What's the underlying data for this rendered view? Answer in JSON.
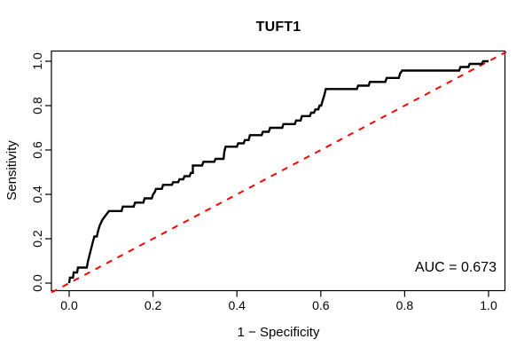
{
  "chart_data": {
    "type": "line",
    "subtype": "roc-step-curve",
    "title": "TUFT1",
    "annotation": "AUC = 0.673",
    "auc_value": 0.673,
    "x_axis": {
      "label": "1 − Specificity",
      "ticks": [
        0.0,
        0.2,
        0.4,
        0.6,
        0.8,
        1.0
      ],
      "tick_labels": [
        "0.0",
        "0.2",
        "0.4",
        "0.6",
        "0.8",
        "1.0"
      ],
      "range": [
        -0.042,
        1.042
      ]
    },
    "y_axis": {
      "label": "Sensitivity",
      "ticks": [
        0.0,
        0.2,
        0.4,
        0.6,
        0.8,
        1.0
      ],
      "tick_labels": [
        "0.0",
        "0.2",
        "0.4",
        "0.6",
        "0.8",
        "1.0"
      ],
      "range": [
        -0.042,
        1.042
      ]
    },
    "grid": false,
    "legend": "none",
    "colors": {
      "curve": "#000000",
      "diagonal": "#ff0000",
      "box": "#000000",
      "background": "#ffffff"
    },
    "series": [
      {
        "name": "roc-curve",
        "color": "#000000",
        "width": 2.4,
        "dash": "",
        "points": [
          [
            0,
            0
          ],
          [
            0.002,
            0.025
          ],
          [
            0.009,
            0.025
          ],
          [
            0.011,
            0.048
          ],
          [
            0.019,
            0.048
          ],
          [
            0.021,
            0.07
          ],
          [
            0.042,
            0.07
          ],
          [
            0.045,
            0.1
          ],
          [
            0.049,
            0.13
          ],
          [
            0.053,
            0.16
          ],
          [
            0.057,
            0.19
          ],
          [
            0.06,
            0.21
          ],
          [
            0.066,
            0.21
          ],
          [
            0.069,
            0.235
          ],
          [
            0.073,
            0.26
          ],
          [
            0.079,
            0.285
          ],
          [
            0.085,
            0.3
          ],
          [
            0.091,
            0.315
          ],
          [
            0.095,
            0.325
          ],
          [
            0.125,
            0.325
          ],
          [
            0.128,
            0.345
          ],
          [
            0.154,
            0.345
          ],
          [
            0.157,
            0.363
          ],
          [
            0.177,
            0.363
          ],
          [
            0.18,
            0.382
          ],
          [
            0.197,
            0.382
          ],
          [
            0.2,
            0.4
          ],
          [
            0.204,
            0.41
          ],
          [
            0.207,
            0.425
          ],
          [
            0.221,
            0.425
          ],
          [
            0.224,
            0.443
          ],
          [
            0.245,
            0.443
          ],
          [
            0.248,
            0.455
          ],
          [
            0.26,
            0.455
          ],
          [
            0.263,
            0.468
          ],
          [
            0.272,
            0.468
          ],
          [
            0.275,
            0.482
          ],
          [
            0.287,
            0.482
          ],
          [
            0.29,
            0.497
          ],
          [
            0.295,
            0.497
          ],
          [
            0.295,
            0.53
          ],
          [
            0.317,
            0.53
          ],
          [
            0.32,
            0.547
          ],
          [
            0.346,
            0.547
          ],
          [
            0.349,
            0.56
          ],
          [
            0.368,
            0.56
          ],
          [
            0.37,
            0.592
          ],
          [
            0.373,
            0.615
          ],
          [
            0.4,
            0.615
          ],
          [
            0.403,
            0.63
          ],
          [
            0.416,
            0.63
          ],
          [
            0.419,
            0.645
          ],
          [
            0.428,
            0.645
          ],
          [
            0.431,
            0.667
          ],
          [
            0.459,
            0.667
          ],
          [
            0.462,
            0.682
          ],
          [
            0.476,
            0.682
          ],
          [
            0.479,
            0.7
          ],
          [
            0.508,
            0.7
          ],
          [
            0.511,
            0.717
          ],
          [
            0.538,
            0.717
          ],
          [
            0.541,
            0.733
          ],
          [
            0.552,
            0.733
          ],
          [
            0.555,
            0.753
          ],
          [
            0.574,
            0.753
          ],
          [
            0.577,
            0.768
          ],
          [
            0.584,
            0.768
          ],
          [
            0.587,
            0.783
          ],
          [
            0.594,
            0.783
          ],
          [
            0.597,
            0.8
          ],
          [
            0.601,
            0.8
          ],
          [
            0.604,
            0.82
          ],
          [
            0.608,
            0.845
          ],
          [
            0.612,
            0.875
          ],
          [
            0.686,
            0.875
          ],
          [
            0.689,
            0.89
          ],
          [
            0.714,
            0.89
          ],
          [
            0.717,
            0.907
          ],
          [
            0.754,
            0.907
          ],
          [
            0.757,
            0.925
          ],
          [
            0.786,
            0.925
          ],
          [
            0.789,
            0.945
          ],
          [
            0.794,
            0.958
          ],
          [
            0.93,
            0.958
          ],
          [
            0.933,
            0.974
          ],
          [
            0.952,
            0.974
          ],
          [
            0.955,
            0.988
          ],
          [
            0.984,
            0.988
          ],
          [
            0.987,
            1
          ],
          [
            1,
            1
          ]
        ]
      },
      {
        "name": "chance-diagonal",
        "color": "#ff0000",
        "width": 2,
        "dash": "7,7",
        "points": [
          [
            -0.042,
            -0.042
          ],
          [
            1.042,
            1.042
          ]
        ]
      }
    ]
  }
}
